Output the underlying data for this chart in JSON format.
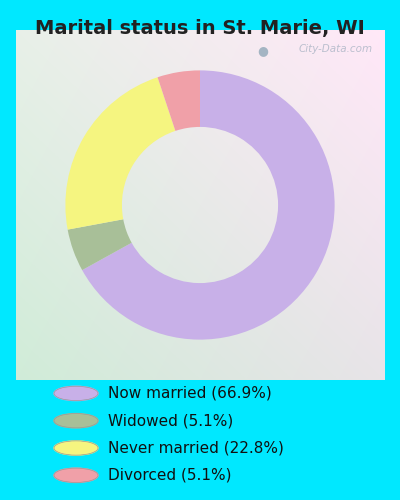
{
  "title": "Marital status in St. Marie, WI",
  "slices": [
    66.9,
    5.1,
    22.8,
    5.1
  ],
  "labels": [
    "Now married (66.9%)",
    "Widowed (5.1%)",
    "Never married (22.8%)",
    "Divorced (5.1%)"
  ],
  "colors": [
    "#c8b0e8",
    "#a8bf98",
    "#f5f580",
    "#f0a0a8"
  ],
  "start_angle": 90,
  "bg_color_topleft": "#d8f0e8",
  "bg_color_topright": "#e8e8f8",
  "bg_color_bottom": "#d0ecd8",
  "outer_bg": "#00e8ff",
  "title_fontsize": 14,
  "title_color": "#222222",
  "legend_fontsize": 11,
  "watermark": "City-Data.com"
}
